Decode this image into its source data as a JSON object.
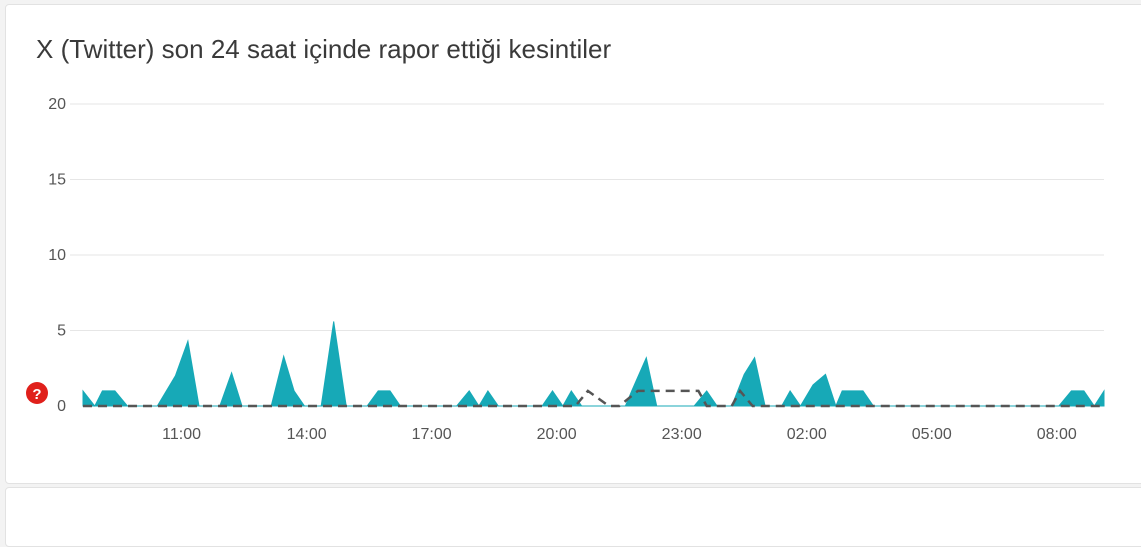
{
  "card": {
    "title": "X (Twitter) son 24 saat içinde rapor ettiği kesintiler"
  },
  "marker": {
    "icon": "question-icon",
    "symbol": "?",
    "color": "#e0201b"
  },
  "colors": {
    "area": "#17a9b7",
    "baseline": "#555555",
    "grid": "#e6e6e6",
    "axis_text": "#555555"
  },
  "chart_data": {
    "type": "area",
    "title": "X (Twitter) son 24 saat içinde rapor ettiği kesintiler",
    "xlabel": "",
    "ylabel": "",
    "ylim": [
      0,
      20
    ],
    "yticks": [
      "0",
      "5",
      "10",
      "15",
      "20"
    ],
    "xtick_labels": [
      "11:00",
      "14:00",
      "17:00",
      "20:00",
      "23:00",
      "02:00",
      "05:00",
      "08:00"
    ],
    "grid": true,
    "legend": "none",
    "series": [
      {
        "style": "area",
        "points": [
          [
            8.634,
            1
          ],
          [
            8.917,
            0
          ],
          [
            9.1,
            1
          ],
          [
            9.4,
            1
          ],
          [
            9.7,
            0
          ],
          [
            10.417,
            0
          ],
          [
            10.85,
            2
          ],
          [
            11.15,
            4.3
          ],
          [
            11.417,
            0
          ],
          [
            11.917,
            0
          ],
          [
            12.2,
            2.2
          ],
          [
            12.45,
            0
          ],
          [
            13.15,
            0
          ],
          [
            13.45,
            3.3
          ],
          [
            13.7,
            1
          ],
          [
            13.95,
            0
          ],
          [
            14.35,
            0
          ],
          [
            14.65,
            5.6
          ],
          [
            14.95,
            0
          ],
          [
            15.45,
            0
          ],
          [
            15.717,
            1
          ],
          [
            16.0,
            1
          ],
          [
            16.25,
            0
          ],
          [
            17.6,
            0
          ],
          [
            17.9,
            1
          ],
          [
            18.133,
            0
          ],
          [
            18.35,
            1
          ],
          [
            18.6,
            0
          ],
          [
            19.65,
            0
          ],
          [
            19.9,
            1
          ],
          [
            20.15,
            0
          ],
          [
            20.35,
            1
          ],
          [
            20.6,
            0
          ],
          [
            21.65,
            0
          ],
          [
            21.8,
            1
          ],
          [
            22.15,
            3.2
          ],
          [
            22.4,
            0
          ],
          [
            23.3,
            0
          ],
          [
            23.6,
            1
          ],
          [
            23.85,
            0
          ],
          [
            24.2,
            0
          ],
          [
            24.5,
            2.1
          ],
          [
            24.75,
            3.2
          ],
          [
            25.0,
            0
          ],
          [
            25.4,
            0
          ],
          [
            25.6,
            1
          ],
          [
            25.85,
            0
          ],
          [
            26.15,
            1.4
          ],
          [
            26.45,
            2.1
          ],
          [
            26.7,
            0
          ],
          [
            26.85,
            1
          ],
          [
            27.35,
            1
          ],
          [
            27.6,
            0
          ],
          [
            32.05,
            0
          ],
          [
            32.35,
            1
          ],
          [
            32.65,
            1
          ],
          [
            32.9,
            0
          ],
          [
            33.133,
            1
          ]
        ]
      },
      {
        "style": "dashed",
        "points": [
          [
            8.634,
            0
          ],
          [
            20.45,
            0
          ],
          [
            20.75,
            1
          ],
          [
            21.25,
            0
          ],
          [
            21.5,
            0
          ],
          [
            21.95,
            1
          ],
          [
            23.4,
            1
          ],
          [
            23.6,
            0
          ],
          [
            24.2,
            0
          ],
          [
            24.4,
            1
          ],
          [
            24.7,
            0
          ],
          [
            33.133,
            0
          ]
        ]
      }
    ]
  }
}
